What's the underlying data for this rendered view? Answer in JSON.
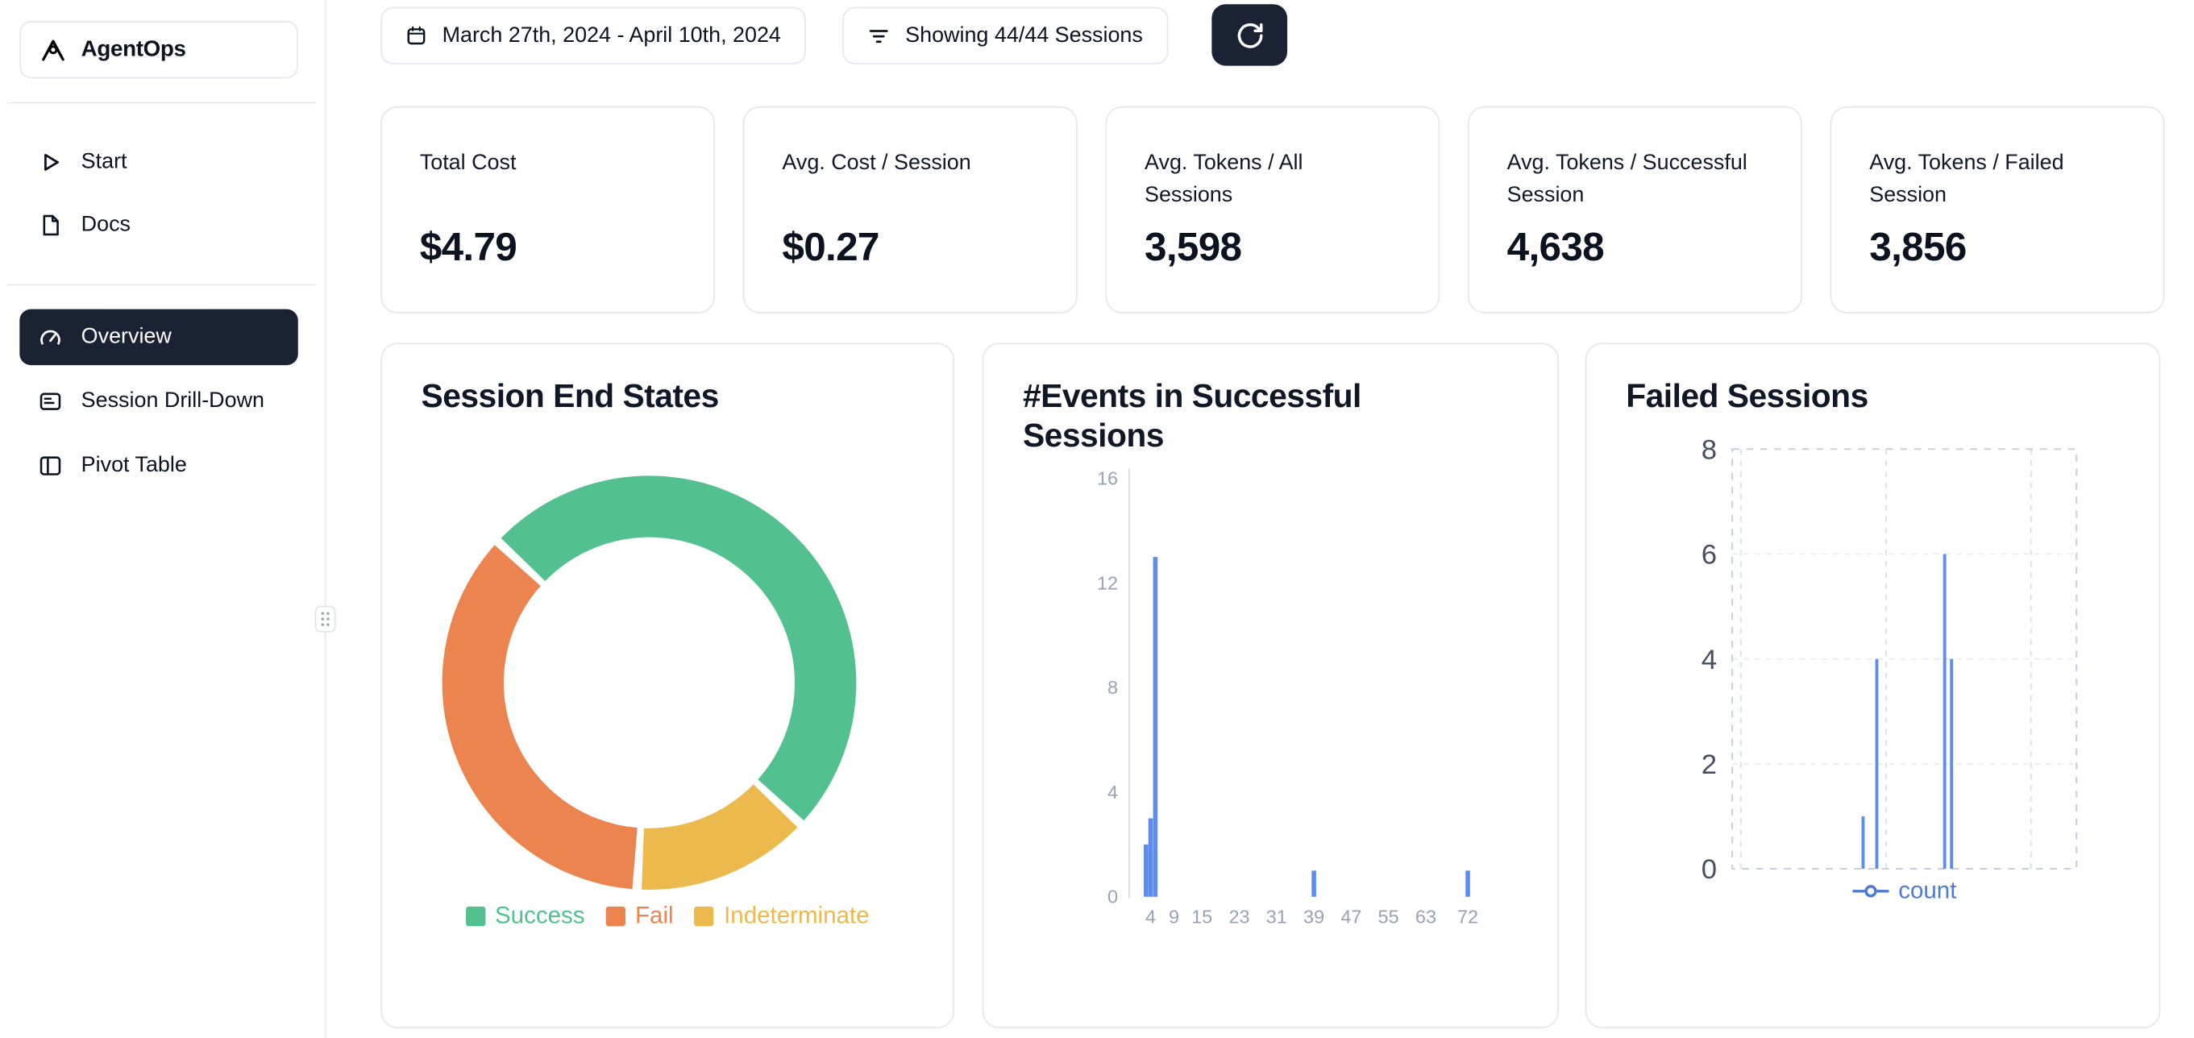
{
  "app": {
    "name": "AgentOps"
  },
  "colors": {
    "accent_navy": "#1a2234",
    "card_border": "#e3e8ef",
    "success_green": "#53c08f",
    "fail_orange": "#ec8450",
    "indeterminate_yellow": "#ecb94d",
    "chart_blue": "#5b8cf2",
    "count_legend_blue": "#4d7cd0"
  },
  "sidebar": {
    "logo_text": "AgentOps",
    "nav_top": [
      {
        "label": "Start",
        "icon": "play-icon"
      },
      {
        "label": "Docs",
        "icon": "document-icon"
      }
    ],
    "nav_main": [
      {
        "label": "Overview",
        "icon": "gauge-icon",
        "active": true
      },
      {
        "label": "Session Drill-Down",
        "icon": "panel-icon",
        "active": false
      },
      {
        "label": "Pivot Table",
        "icon": "columns-icon",
        "active": false
      }
    ]
  },
  "topbar": {
    "date_range": "March 27th, 2024 - April 10th, 2024",
    "sessions_filter": "Showing 44/44 Sessions",
    "refresh": "refresh-icon"
  },
  "stats": [
    {
      "label": "Total Cost",
      "value": "$4.79"
    },
    {
      "label": "Avg. Cost / Session",
      "value": "$0.27"
    },
    {
      "label": "Avg. Tokens / All Sessions",
      "value": "3,598"
    },
    {
      "label": "Avg. Tokens / Successful Session",
      "value": "4,638"
    },
    {
      "label": "Avg. Tokens / Failed Session",
      "value": "3,856"
    }
  ],
  "chart_data": [
    {
      "id": "session-end-states",
      "type": "pie",
      "title": "Session End States",
      "donut": true,
      "start_angle_deg": -47,
      "slices": [
        {
          "label": "Success",
          "value": 50,
          "color": "#53c08f"
        },
        {
          "label": "Indeterminate",
          "value": 14,
          "color": "#ecb94d"
        },
        {
          "label": "Fail",
          "value": 36,
          "color": "#ec8450"
        }
      ],
      "legend": [
        "Success",
        "Fail",
        "Indeterminate"
      ]
    },
    {
      "id": "events-in-successful-sessions",
      "type": "bar",
      "title": "#Events in Successful Sessions",
      "color": "#5b8cf2",
      "x_ticks": [
        4,
        9,
        15,
        23,
        31,
        39,
        47,
        55,
        63,
        72
      ],
      "y_ticks": [
        0,
        4,
        8,
        12,
        16
      ],
      "x_domain": [
        0,
        75
      ],
      "y_domain": [
        0,
        16
      ],
      "bars": [
        {
          "x": 3,
          "value": 2
        },
        {
          "x": 4,
          "value": 3
        },
        {
          "x": 5,
          "value": 13
        },
        {
          "x": 39,
          "value": 1
        },
        {
          "x": 72,
          "value": 1
        }
      ]
    },
    {
      "id": "failed-sessions",
      "type": "line",
      "title": "Failed Sessions",
      "color": "#5b8cf2",
      "y_ticks": [
        0,
        2,
        4,
        6,
        8
      ],
      "y_domain": [
        0,
        8
      ],
      "legend": [
        {
          "label": "count",
          "color": "#4d7cd0"
        }
      ],
      "spikes": [
        {
          "pos": 0.38,
          "value": 1
        },
        {
          "pos": 0.42,
          "value": 4
        },
        {
          "pos": 0.617,
          "value": 6
        },
        {
          "pos": 0.637,
          "value": 4
        }
      ],
      "grid": {
        "border": "dashed",
        "v_lines": [
          0.025,
          0.447,
          0.868
        ]
      }
    }
  ]
}
